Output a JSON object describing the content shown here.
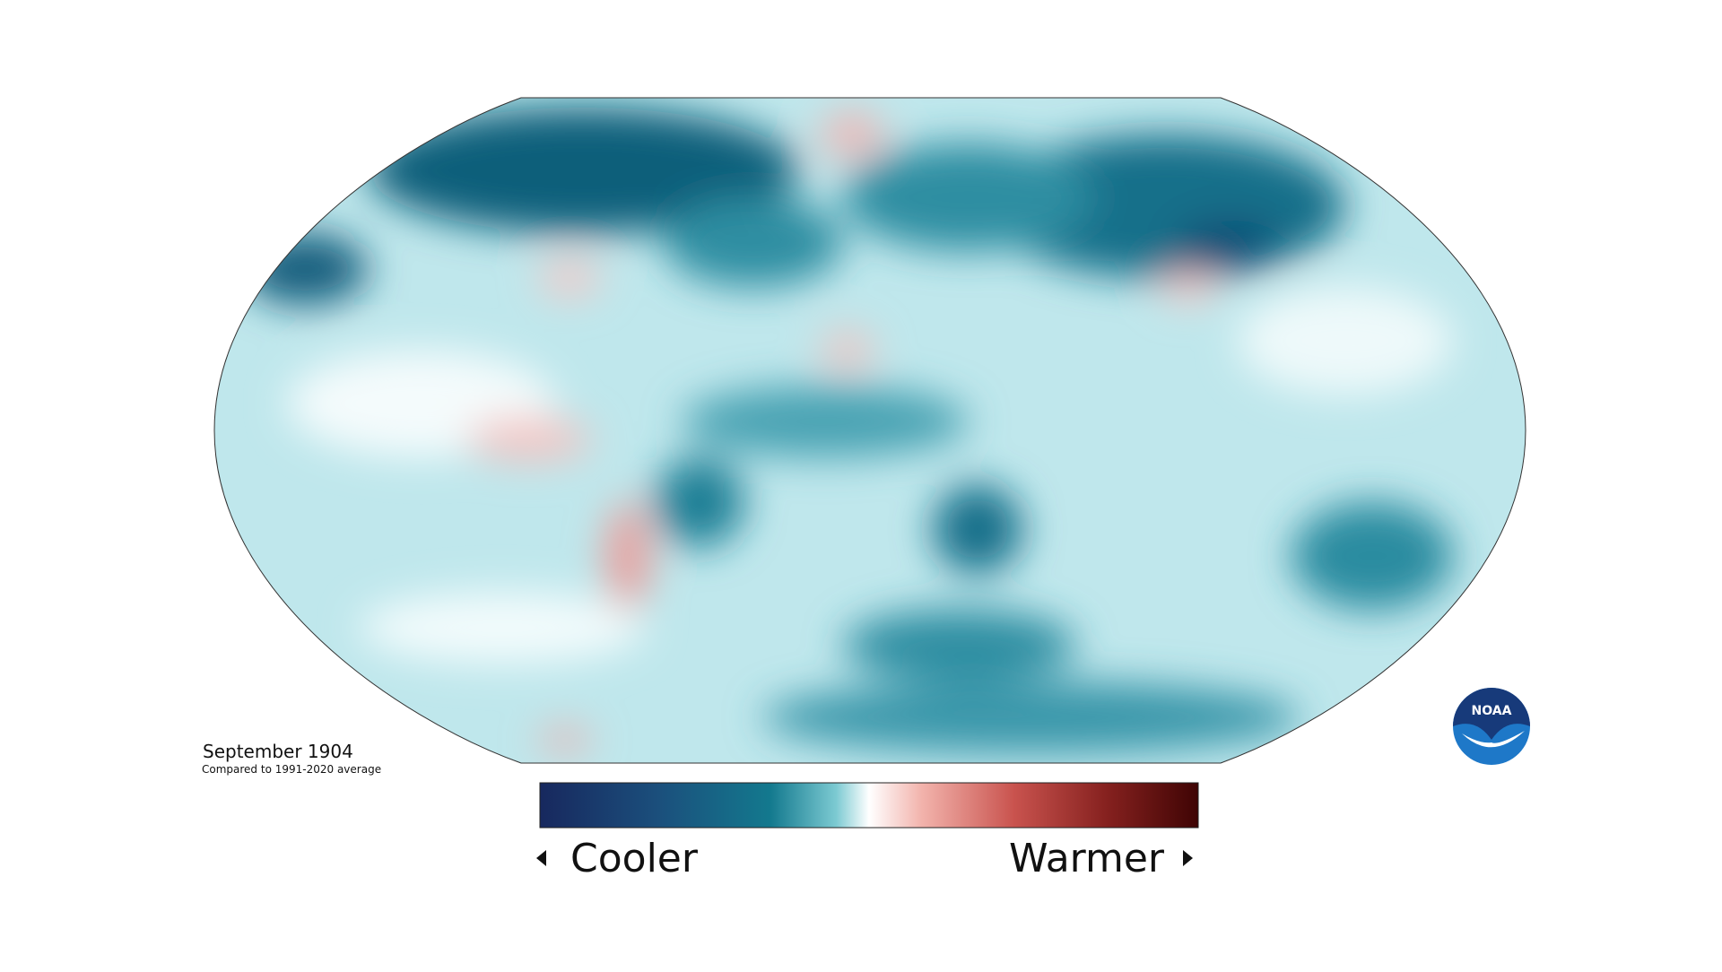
{
  "map": {
    "title": "September 1904",
    "subtitle": "Compared to 1991-2020 average"
  },
  "legend": {
    "low_label": "Cooler",
    "high_label": "Warmer"
  },
  "logo": {
    "text": "NOAA"
  }
}
